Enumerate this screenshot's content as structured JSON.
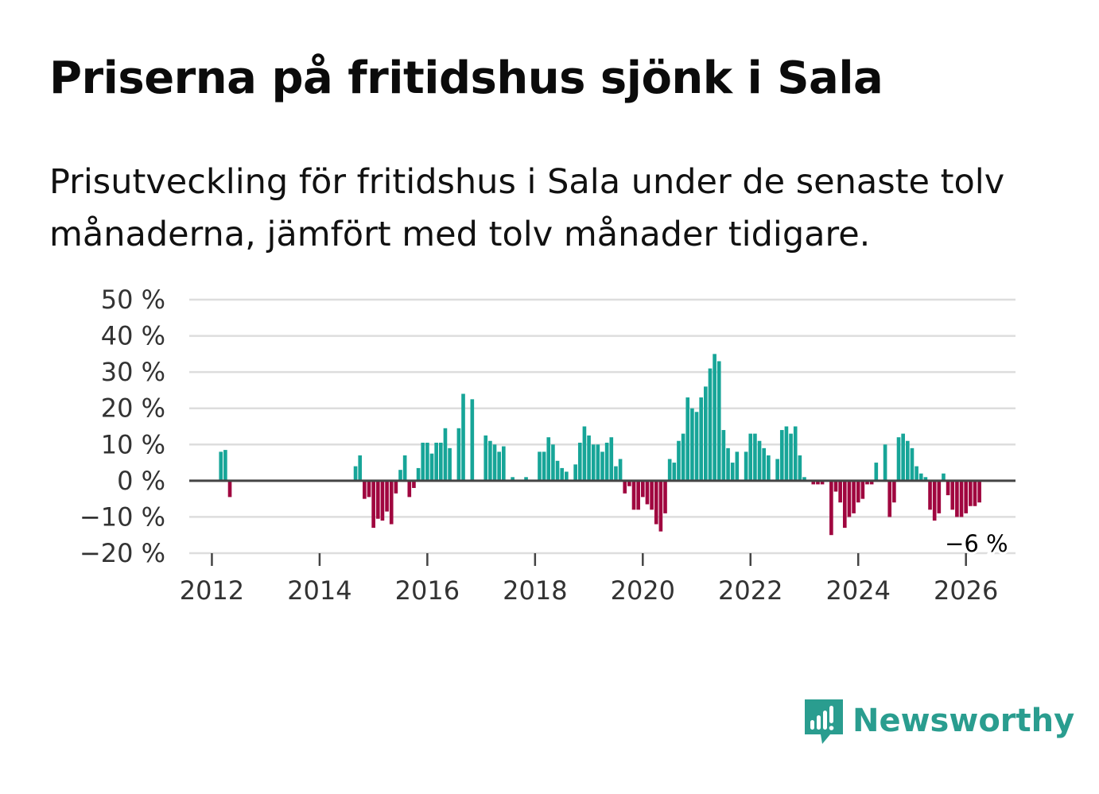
{
  "title": "Priserna på fritidshus sjönk i Sala",
  "subtitle": "Prisutveckling för fritidshus i Sala under de senaste tolv månaderna, jämfört med tolv månader tidigare.",
  "brand": "Newsworthy",
  "colors": {
    "positive": "#17a598",
    "negative": "#a0063f",
    "grid": "#dddddd",
    "axis": "#444444",
    "brand": "#2a9d8f"
  },
  "chart_data": {
    "type": "bar",
    "title": "Priserna på fritidshus sjönk i Sala",
    "xlabel": "",
    "ylabel": "",
    "ylim": [
      -20,
      50
    ],
    "yticks": [
      -20,
      -10,
      0,
      10,
      20,
      30,
      40,
      50
    ],
    "ytick_labels": [
      "−20 %",
      "−10 %",
      "0 %",
      "10 %",
      "20 %",
      "30 %",
      "40 %",
      "50 %"
    ],
    "xlim": [
      2011.58,
      2026.92
    ],
    "xticks": [
      2012,
      2014,
      2016,
      2018,
      2020,
      2022,
      2024,
      2026
    ],
    "xtick_labels": [
      "2012",
      "2014",
      "2016",
      "2018",
      "2020",
      "2022",
      "2024",
      "2026"
    ],
    "end_label": "−6 %",
    "series": [
      {
        "name": "Prisutveckling",
        "start": "2012-01",
        "frequency": "monthly",
        "values": [
          0,
          0,
          8,
          8.5,
          -4.5,
          0,
          0,
          0,
          0,
          0,
          0,
          0,
          0,
          0,
          0,
          0,
          0,
          0,
          0,
          0,
          0,
          0,
          0,
          0,
          0,
          0,
          0,
          0,
          0,
          0,
          0,
          0,
          4,
          7,
          -5,
          -4.5,
          -13,
          -10.5,
          -11,
          -8.5,
          -12,
          -3.5,
          3,
          7,
          -4.5,
          -2,
          3.5,
          10.5,
          10.5,
          7.5,
          10.5,
          10.5,
          14.5,
          9,
          0,
          14.5,
          24,
          0,
          22.5,
          0,
          0,
          12.5,
          11,
          10,
          8,
          9.5,
          0,
          1,
          0,
          0,
          1,
          0,
          0,
          8,
          8,
          12,
          10,
          5.5,
          3.5,
          2.5,
          0,
          4.5,
          10.5,
          15,
          12.5,
          10,
          10,
          8,
          10.5,
          12,
          4,
          6,
          -3.5,
          -1.5,
          -8,
          -8,
          -4.5,
          -6.5,
          -8,
          -12,
          -14,
          -9,
          6,
          5,
          11,
          13,
          23,
          20,
          19,
          23,
          26,
          31,
          35,
          33,
          14,
          9,
          5,
          8,
          0,
          8,
          13,
          13,
          11,
          9,
          7,
          0,
          6,
          14,
          15,
          13,
          15,
          7,
          1,
          0,
          -1,
          -1,
          -1,
          0,
          -15,
          -3,
          -6,
          -13,
          -10,
          -9,
          -6,
          -5,
          -1,
          -1,
          5,
          0,
          10,
          -10,
          -6,
          12,
          13,
          11,
          9,
          4,
          2,
          1,
          -8,
          -11,
          -9,
          2,
          -4,
          -8,
          -10,
          -10,
          -9,
          -7,
          -7,
          -6
        ]
      }
    ]
  }
}
